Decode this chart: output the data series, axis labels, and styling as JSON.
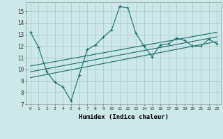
{
  "xlabel": "Humidex (Indice chaleur)",
  "ylabel": "",
  "bg_color": "#cce8e8",
  "grid_color": "#aacccc",
  "line_color": "#1a6868",
  "xlim": [
    -0.5,
    23.5
  ],
  "ylim": [
    7,
    15.8
  ],
  "yticks": [
    7,
    8,
    9,
    10,
    11,
    12,
    13,
    14,
    15
  ],
  "xticks": [
    0,
    1,
    2,
    3,
    4,
    5,
    6,
    7,
    8,
    9,
    10,
    11,
    12,
    13,
    14,
    15,
    16,
    17,
    18,
    19,
    20,
    21,
    22,
    23
  ],
  "main_x": [
    0,
    1,
    2,
    3,
    4,
    5,
    6,
    7,
    8,
    9,
    10,
    11,
    12,
    13,
    14,
    15,
    16,
    17,
    18,
    19,
    20,
    21,
    22,
    23
  ],
  "main_y": [
    13.2,
    11.9,
    9.8,
    8.9,
    8.5,
    7.3,
    9.5,
    11.7,
    12.1,
    12.8,
    13.4,
    15.4,
    15.3,
    13.1,
    12.0,
    11.1,
    12.1,
    12.2,
    12.7,
    12.5,
    12.0,
    12.0,
    12.6,
    12.2
  ],
  "trend1_x": [
    0,
    23
  ],
  "trend1_y": [
    9.3,
    12.4
  ],
  "trend2_x": [
    0,
    23
  ],
  "trend2_y": [
    9.8,
    12.8
  ],
  "trend3_x": [
    0,
    23
  ],
  "trend3_y": [
    10.3,
    13.2
  ]
}
